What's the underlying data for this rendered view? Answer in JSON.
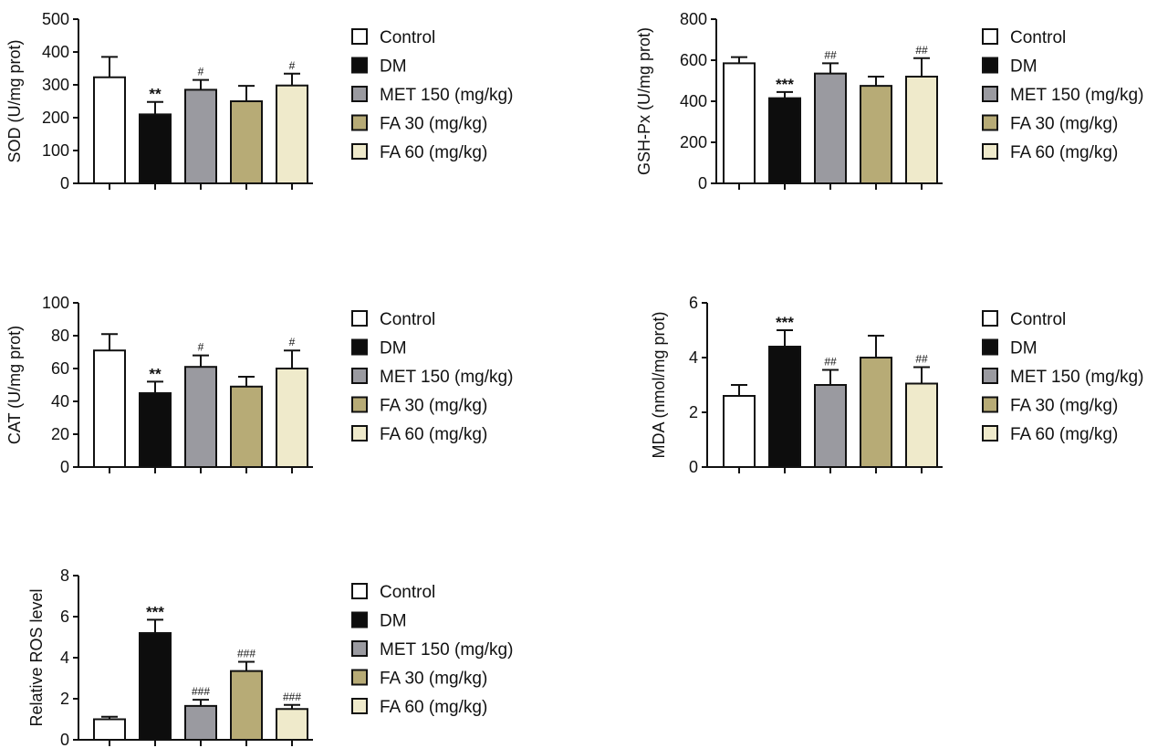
{
  "colors": {
    "Control": "#ffffff",
    "DM": "#0d0d0d",
    "MET 150 (mg/kg)": "#9a9aa0",
    "FA 30 (mg/kg)": "#b7ab76",
    "FA 60 (mg/kg)": "#efeacb"
  },
  "chart_data": [
    {
      "id": "sod",
      "type": "bar",
      "ylabel": "SOD (U/mg prot)",
      "ylim": [
        0,
        500
      ],
      "yticks": [
        "0",
        "100",
        "200",
        "300",
        "400",
        "500"
      ],
      "categories": [
        "Control",
        "DM",
        "MET 150 (mg/kg)",
        "FA 30 (mg/kg)",
        "FA 60 (mg/kg)"
      ],
      "values": [
        323,
        210,
        285,
        250,
        298
      ],
      "errors": [
        62,
        38,
        30,
        47,
        36
      ],
      "annotations": [
        "",
        "**",
        "#",
        "",
        "#"
      ],
      "legend": [
        "Control",
        "DM",
        "MET 150 (mg/kg)",
        "FA 30 (mg/kg)",
        "FA 60 (mg/kg)"
      ]
    },
    {
      "id": "gshpx",
      "type": "bar",
      "ylabel": "GSH-Px (U/mg prot)",
      "ylim": [
        0,
        800
      ],
      "yticks": [
        "0",
        "200",
        "400",
        "600",
        "800"
      ],
      "categories": [
        "Control",
        "DM",
        "MET 150 (mg/kg)",
        "FA 30 (mg/kg)",
        "FA 60 (mg/kg)"
      ],
      "values": [
        585,
        415,
        535,
        475,
        520
      ],
      "errors": [
        30,
        30,
        50,
        45,
        90
      ],
      "annotations": [
        "",
        "***",
        "##",
        "",
        "##"
      ],
      "legend": [
        "Control",
        "DM",
        "MET 150 (mg/kg)",
        "FA 30 (mg/kg)",
        "FA 60 (mg/kg)"
      ]
    },
    {
      "id": "cat",
      "type": "bar",
      "ylabel": "CAT (U/mg prot)",
      "ylim": [
        0,
        100
      ],
      "yticks": [
        "0",
        "20",
        "40",
        "60",
        "80",
        "100"
      ],
      "categories": [
        "Control",
        "DM",
        "MET 150 (mg/kg)",
        "FA 30 (mg/kg)",
        "FA 60 (mg/kg)"
      ],
      "values": [
        71,
        45,
        61,
        49,
        60
      ],
      "errors": [
        10,
        7,
        7,
        6,
        11
      ],
      "annotations": [
        "",
        "**",
        "#",
        "",
        "#"
      ],
      "legend": [
        "Control",
        "DM",
        "MET 150 (mg/kg)",
        "FA 30 (mg/kg)",
        "FA 60 (mg/kg)"
      ]
    },
    {
      "id": "mda",
      "type": "bar",
      "ylabel": "MDA (nmol/mg prot)",
      "ylim": [
        0,
        6
      ],
      "yticks": [
        "0",
        "2",
        "4",
        "6"
      ],
      "categories": [
        "Control",
        "DM",
        "MET 150 (mg/kg)",
        "FA 30 (mg/kg)",
        "FA 60 (mg/kg)"
      ],
      "values": [
        2.6,
        4.4,
        3.0,
        4.0,
        3.05
      ],
      "errors": [
        0.4,
        0.6,
        0.55,
        0.8,
        0.6
      ],
      "annotations": [
        "",
        "***",
        "##",
        "",
        "##"
      ],
      "legend": [
        "Control",
        "DM",
        "MET 150 (mg/kg)",
        "FA 30 (mg/kg)",
        "FA 60 (mg/kg)"
      ]
    },
    {
      "id": "ros",
      "type": "bar",
      "ylabel": "Relative ROS level",
      "ylim": [
        0,
        8
      ],
      "yticks": [
        "0",
        "2",
        "4",
        "6",
        "8"
      ],
      "categories": [
        "Control",
        "DM",
        "MET 150 (mg/kg)",
        "FA 30 (mg/kg)",
        "FA 60 (mg/kg)"
      ],
      "values": [
        1.0,
        5.2,
        1.65,
        3.35,
        1.5
      ],
      "errors": [
        0.12,
        0.65,
        0.3,
        0.45,
        0.2
      ],
      "annotations": [
        "",
        "***",
        "###",
        "###",
        "###"
      ],
      "legend": [
        "Control",
        "DM",
        "MET 150 (mg/kg)",
        "FA 30 (mg/kg)",
        "FA 60 (mg/kg)"
      ]
    }
  ]
}
